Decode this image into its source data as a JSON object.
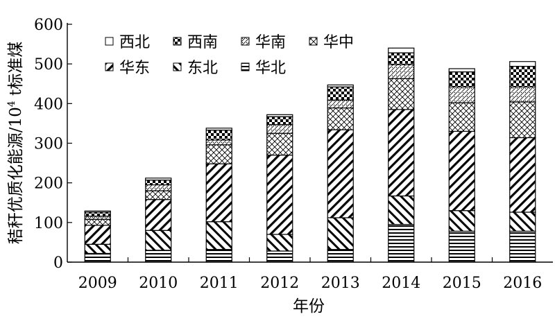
{
  "chart_data": {
    "type": "bar",
    "stacked": true,
    "title": "",
    "xlabel": "年份",
    "ylabel_main": "秸秆优质化能源/10",
    "ylabel_sup": "4",
    "ylabel_tail": " t标准煤",
    "ylim": [
      0,
      600
    ],
    "yticks": [
      "0",
      "100",
      "200",
      "300",
      "400",
      "500",
      "600"
    ],
    "grid": false,
    "legend_position": "top-left",
    "categories": [
      "2009",
      "2010",
      "2011",
      "2012",
      "2013",
      "2014",
      "2015",
      "2016"
    ],
    "series": [
      {
        "name": "华北",
        "pattern": "hlines",
        "values": [
          22,
          30,
          32,
          28,
          32,
          95,
          78,
          78
        ]
      },
      {
        "name": "东北",
        "pattern": "backdiag",
        "values": [
          23,
          50,
          70,
          42,
          80,
          72,
          52,
          48
        ]
      },
      {
        "name": "华东",
        "pattern": "fwddiag",
        "values": [
          48,
          78,
          146,
          200,
          222,
          218,
          200,
          188
        ]
      },
      {
        "name": "华中",
        "pattern": "diamond",
        "values": [
          15,
          22,
          48,
          55,
          55,
          78,
          72,
          90
        ]
      },
      {
        "name": "华南",
        "pattern": "crossdot",
        "values": [
          8,
          15,
          12,
          22,
          20,
          35,
          40,
          38
        ]
      },
      {
        "name": "西南",
        "pattern": "checker",
        "values": [
          10,
          12,
          25,
          20,
          33,
          30,
          38,
          52
        ]
      },
      {
        "name": "西北",
        "pattern": "blank",
        "values": [
          3,
          5,
          5,
          5,
          5,
          12,
          8,
          12
        ]
      }
    ]
  }
}
